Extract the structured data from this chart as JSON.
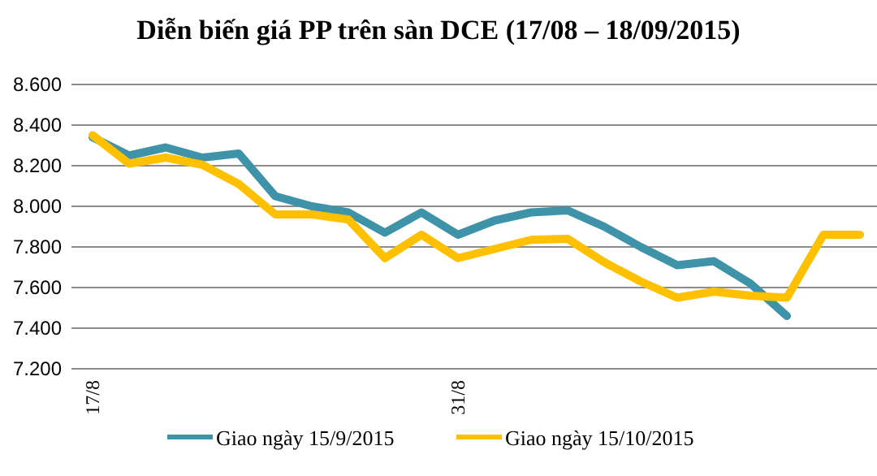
{
  "chart_data": {
    "type": "line",
    "title": "Diễn biến giá PP trên sàn DCE (17/08 – 18/09/2015)",
    "categories": [
      "17/8",
      null,
      null,
      null,
      null,
      null,
      null,
      null,
      null,
      null,
      "31/8",
      null,
      null,
      null,
      null,
      null,
      null,
      null,
      null,
      null,
      null,
      null
    ],
    "series": [
      {
        "name": "Giao ngày 15/9/2015",
        "color": "#3f93a8",
        "values": [
          8340,
          8250,
          8290,
          8240,
          8260,
          8050,
          8000,
          7970,
          7870,
          7970,
          7860,
          7930,
          7970,
          7980,
          7900,
          7800,
          7710,
          7730,
          7620,
          7460,
          null,
          null
        ]
      },
      {
        "name": "Giao ngày 15/10/2015",
        "color": "#ffc000",
        "values": [
          8350,
          8210,
          8240,
          8205,
          8110,
          7960,
          7960,
          7935,
          7745,
          7860,
          7745,
          7790,
          7835,
          7840,
          7725,
          7630,
          7550,
          7580,
          7560,
          7550,
          7860,
          7860
        ]
      }
    ],
    "ylim": [
      7200,
      8600
    ],
    "yticks": [
      {
        "value": 7200,
        "label": "7.200"
      },
      {
        "value": 7400,
        "label": "7.400"
      },
      {
        "value": 7600,
        "label": "7.600"
      },
      {
        "value": 7800,
        "label": "7.800"
      },
      {
        "value": 8000,
        "label": "8.000"
      },
      {
        "value": 8200,
        "label": "8.200"
      },
      {
        "value": 8400,
        "label": "8.400"
      },
      {
        "value": 8600,
        "label": "8.600"
      }
    ],
    "grid": "y",
    "legend": "bottom",
    "marker": "none",
    "line_style": "solid"
  }
}
